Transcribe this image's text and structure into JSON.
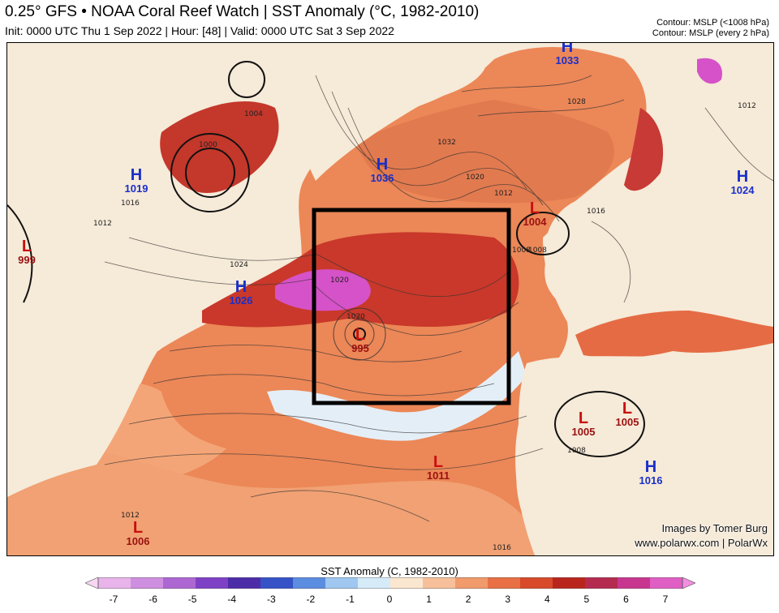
{
  "header": {
    "title": "0.25° GFS • NOAA Coral Reef Watch | SST Anomaly (°C, 1982-2010)",
    "subtitle": "Init: 0000 UTC Thu 1 Sep 2022 | Hour: [48] | Valid: 0000 UTC Sat 3 Sep 2022",
    "contour_1": "Contour: MSLP (<1008 hPa)",
    "contour_2": "Contour: MSLP (every 2 hPa)"
  },
  "pressure_centers": [
    {
      "type": "H",
      "value": "1019"
    },
    {
      "type": "L",
      "value": "999"
    },
    {
      "type": "H",
      "value": "1026"
    },
    {
      "type": "H",
      "value": "1036"
    },
    {
      "type": "H",
      "value": "1033"
    },
    {
      "type": "L",
      "value": "1004"
    },
    {
      "type": "H",
      "value": "1024"
    },
    {
      "type": "L",
      "value": "995"
    },
    {
      "type": "L",
      "value": "1005"
    },
    {
      "type": "L",
      "value": "1005"
    },
    {
      "type": "H",
      "value": "1016"
    },
    {
      "type": "L",
      "value": "1011"
    },
    {
      "type": "L",
      "value": "1006"
    }
  ],
  "isobar_labels": [
    "1004",
    "1000",
    "1016",
    "1012",
    "1024",
    "1020",
    "1020",
    "1032",
    "1028",
    "1020",
    "1012",
    "1016",
    "1012",
    "1008",
    "1008",
    "1008",
    "1012",
    "1016"
  ],
  "credits": {
    "line1": "Images by Tomer Burg",
    "line2": "www.polarwx.com | PolarWx"
  },
  "colorbar": {
    "title": "SST Anomaly (C, 1982-2010)",
    "ticks": [
      "-7",
      "-6",
      "-5",
      "-4",
      "-3",
      "-2",
      "-1",
      "0",
      "1",
      "2",
      "3",
      "4",
      "5",
      "6",
      "7"
    ],
    "colors": [
      "#f7d7f2",
      "#e9b4ea",
      "#cf8fe0",
      "#ad67d2",
      "#7e41c6",
      "#4d2ca8",
      "#3552c7",
      "#5b8de0",
      "#9fc7f0",
      "#d6ebf8",
      "#fbe7cf",
      "#f7c09a",
      "#f19a6c",
      "#e87044",
      "#d84a2a",
      "#b9251c",
      "#b52b4f",
      "#c8358f",
      "#e05fc4",
      "#f38ee0"
    ],
    "colors_note": "ordered from lowest to highest anomaly"
  },
  "map_colors": {
    "land": "#f6ead8",
    "ocean_warm_light": "#f7c09a",
    "ocean_warm": "#ec8757",
    "ocean_hot": "#c9382a",
    "ocean_very_hot": "#b0215e",
    "ocean_extreme": "#d552c8",
    "ocean_cool": "#dcecf8",
    "box": "#000000"
  }
}
